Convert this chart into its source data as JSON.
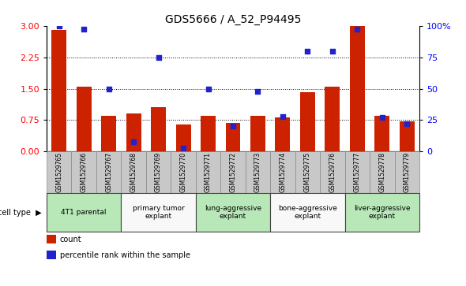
{
  "title": "GDS5666 / A_52_P94495",
  "samples": [
    "GSM1529765",
    "GSM1529766",
    "GSM1529767",
    "GSM1529768",
    "GSM1529769",
    "GSM1529770",
    "GSM1529771",
    "GSM1529772",
    "GSM1529773",
    "GSM1529774",
    "GSM1529775",
    "GSM1529776",
    "GSM1529777",
    "GSM1529778",
    "GSM1529779"
  ],
  "counts": [
    2.9,
    1.55,
    0.85,
    0.9,
    1.05,
    0.65,
    0.85,
    0.68,
    0.85,
    0.82,
    1.42,
    1.55,
    3.0,
    0.85,
    0.73
  ],
  "percentiles": [
    100,
    97,
    50,
    8,
    75,
    3,
    50,
    20,
    48,
    28,
    80,
    80,
    97,
    27,
    22
  ],
  "cell_types": [
    {
      "label": "4T1 parental",
      "start": 0,
      "end": 2,
      "color": "#b8e8b8"
    },
    {
      "label": "primary tumor\nexplant",
      "start": 3,
      "end": 5,
      "color": "#f8f8f8"
    },
    {
      "label": "lung-aggressive\nexplant",
      "start": 6,
      "end": 8,
      "color": "#b8e8b8"
    },
    {
      "label": "bone-aggressive\nexplant",
      "start": 9,
      "end": 11,
      "color": "#f8f8f8"
    },
    {
      "label": "liver-aggressive\nexplant",
      "start": 12,
      "end": 14,
      "color": "#b8e8b8"
    }
  ],
  "bar_color": "#cc2200",
  "dot_color": "#2222cc",
  "ylim_left": [
    0,
    3.0
  ],
  "ylim_right": [
    0,
    100
  ],
  "yticks_left": [
    0,
    0.75,
    1.5,
    2.25,
    3.0
  ],
  "yticks_right": [
    0,
    25,
    50,
    75,
    100
  ],
  "plot_bg": "#ffffff",
  "sample_row_color": "#c8c8c8"
}
